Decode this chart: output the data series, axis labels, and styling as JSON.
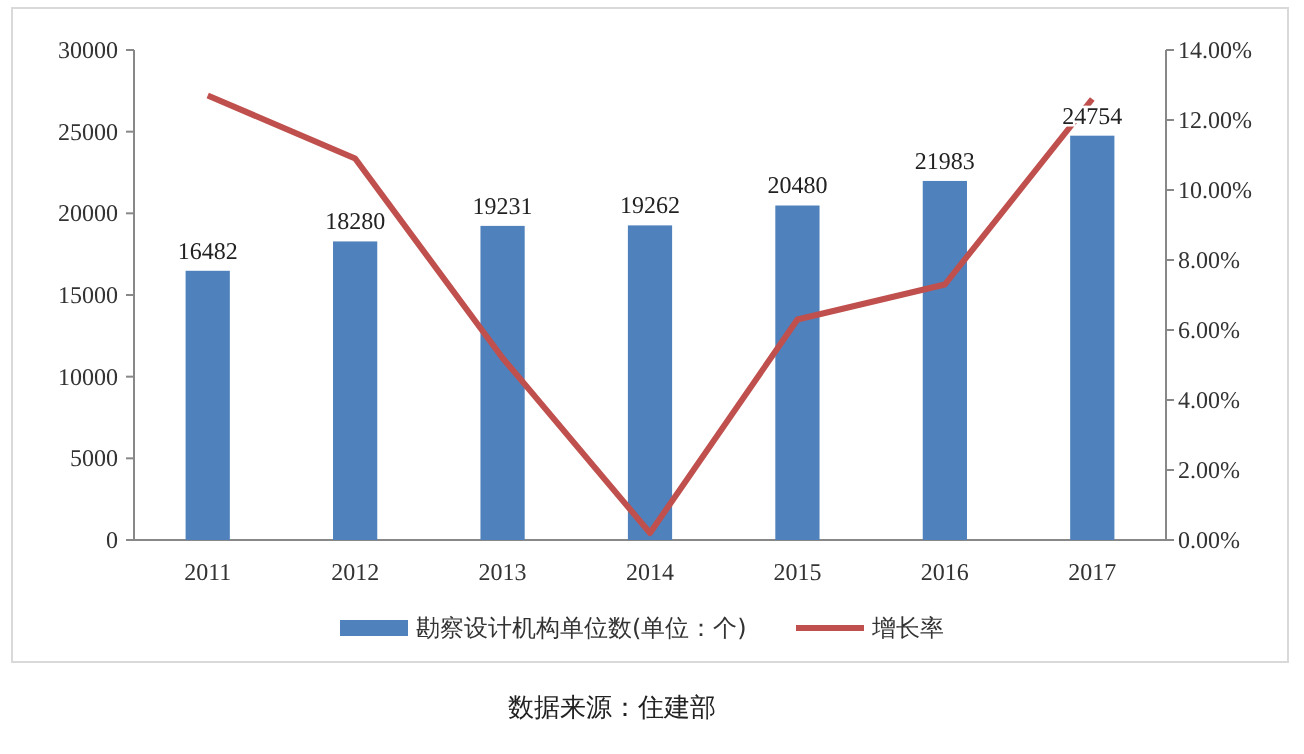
{
  "chart_data": {
    "type": "bar",
    "categories": [
      "2011",
      "2012",
      "2013",
      "2014",
      "2015",
      "2016",
      "2017"
    ],
    "series": [
      {
        "name": "勘察设计机构单位数(单位：个)",
        "color": "#4f81bd",
        "values": [
          16482,
          18280,
          19231,
          19262,
          20480,
          21983,
          24754
        ],
        "value_labels": [
          "16482",
          "18280",
          "19231",
          "19262",
          "20480",
          "21983",
          "24754"
        ]
      },
      {
        "name": "增长率",
        "type": "line",
        "axis": "y2",
        "color": "#c0504d",
        "values": [
          12.7,
          10.9,
          5.2,
          0.2,
          6.3,
          7.3,
          12.6
        ]
      }
    ],
    "ylim": [
      0,
      30000
    ],
    "yticks": [
      0,
      5000,
      10000,
      15000,
      20000,
      25000,
      30000
    ],
    "y2lim": [
      0,
      14
    ],
    "y2ticks": [
      {
        "value": 0,
        "label": "0.00%"
      },
      {
        "value": 2,
        "label": "2.00%"
      },
      {
        "value": 4,
        "label": "4.00%"
      },
      {
        "value": 6,
        "label": "6.00%"
      },
      {
        "value": 8,
        "label": "8.00%"
      },
      {
        "value": 10,
        "label": "10.00%"
      },
      {
        "value": 12,
        "label": "12.00%"
      },
      {
        "value": 14,
        "label": "14.00%"
      }
    ],
    "legend": "bottom",
    "marker": "none",
    "line_style": "solid",
    "annotations": [
      "数据来源：住建部"
    ]
  }
}
